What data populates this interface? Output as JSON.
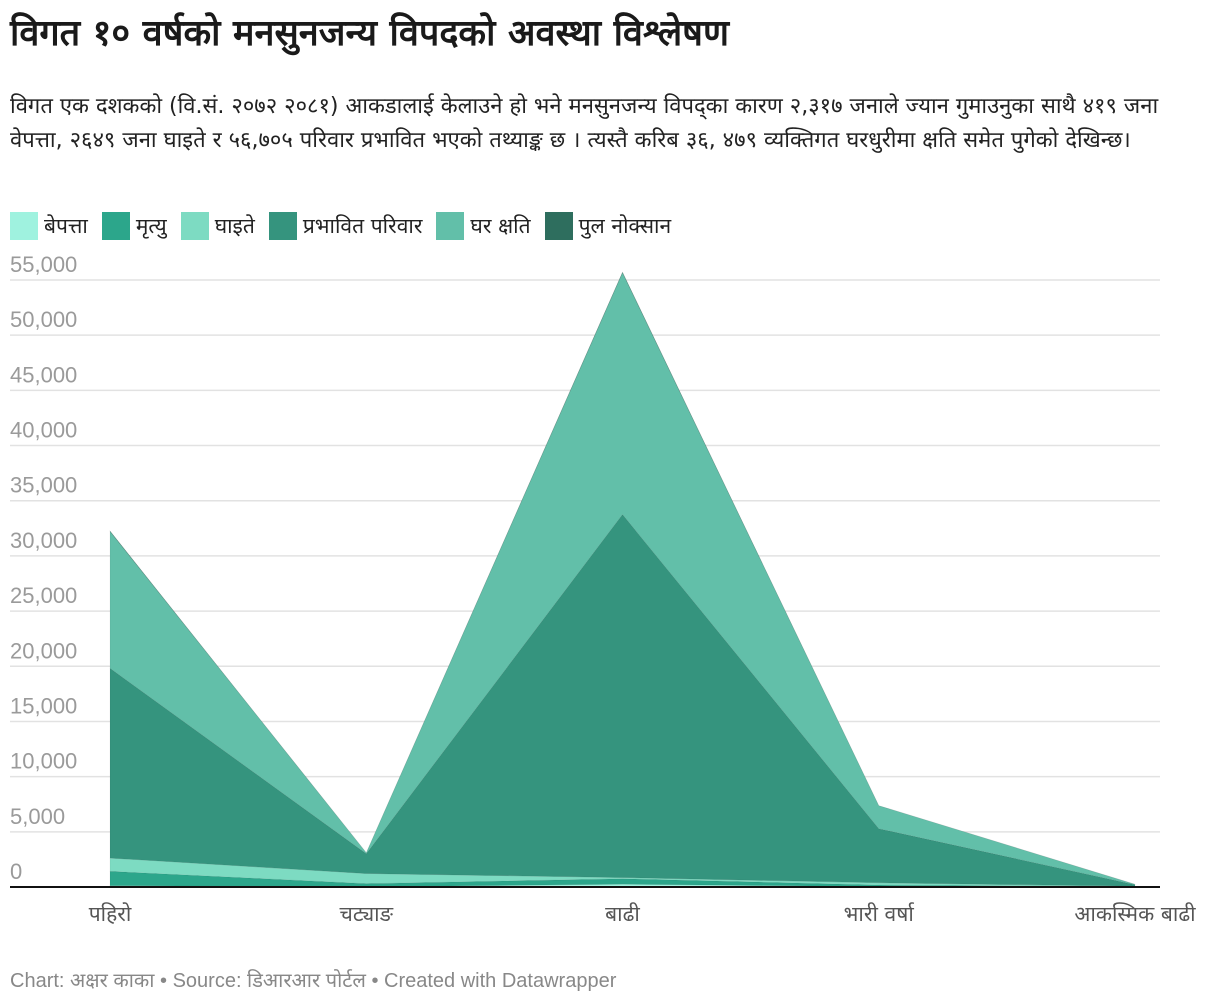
{
  "title": "विगत १० वर्षको मनसुनजन्य विपदको अवस्था विश्लेषण",
  "description": "विगत एक दशकको (वि.सं. २०७२ २०८१) आकडालाई केलाउने हो भने मनसुनजन्य विपद्का कारण २,३१७ जनाले ज्यान गुमाउनुका साथै ४१९ जना वेपत्ता, २६४९ जना घाइते र ५६,७०५ परिवार प्रभावित भएको तथ्याङ्क छ । त्यस्तै करिब ३६, ४७९ व्यक्तिगत घरधुरीमा क्षति समेत पुगेको देखिन्छ।",
  "footer": "Chart: अक्षर काका • Source: डिआरआर पोर्टल • Created with Datawrapper",
  "chart_data": {
    "type": "area",
    "stacked": true,
    "categories": [
      "पहिरो",
      "चट्याङ",
      "बाढी",
      "भारी वर्षा",
      "आकस्मिक बाढी"
    ],
    "ylim": [
      0,
      55000
    ],
    "yticks": [
      "55,000",
      "50,000",
      "45,000",
      "40,000",
      "35,000",
      "30,000",
      "25,000",
      "20,000",
      "15,000",
      "10,000",
      "5,000",
      "0"
    ],
    "grid": true,
    "legend_position": "top",
    "series": [
      {
        "name": "बेपत्ता",
        "color": "#9ff2df",
        "values": [
          120,
          10,
          250,
          30,
          10
        ]
      },
      {
        "name": "मृत्यु",
        "color": "#2ca68b",
        "values": [
          1300,
          300,
          500,
          150,
          30
        ]
      },
      {
        "name": "घाइते",
        "color": "#7ddbc2",
        "values": [
          1200,
          900,
          100,
          200,
          20
        ]
      },
      {
        "name": "प्रभावित परिवार",
        "color": "#35947e",
        "values": [
          17200,
          1800,
          32900,
          4900,
          150
        ]
      },
      {
        "name": "घर क्षति",
        "color": "#62bfa9",
        "values": [
          12400,
          100,
          21900,
          2100,
          40
        ]
      },
      {
        "name": "पुल नोक्सान",
        "color": "#2e6e5e",
        "values": [
          50,
          0,
          70,
          0,
          0
        ]
      }
    ]
  }
}
